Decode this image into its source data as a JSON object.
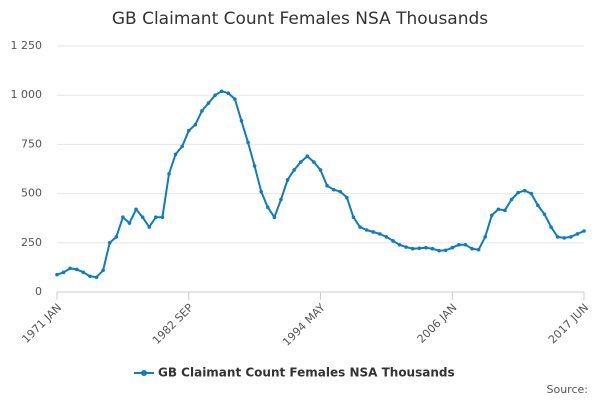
{
  "chart_data": {
    "type": "line",
    "title": "GB Claimant Count Females NSA Thousands",
    "source": "Source:",
    "categories": [
      "1971 JAN",
      null,
      null,
      null,
      null,
      null,
      null,
      null,
      null,
      null,
      null,
      null,
      null,
      null,
      null,
      null,
      null,
      null,
      null,
      null,
      "1982 SEP",
      null,
      null,
      null,
      null,
      null,
      null,
      null,
      null,
      null,
      null,
      null,
      null,
      null,
      null,
      null,
      null,
      null,
      null,
      null,
      "1994 MAY",
      null,
      null,
      null,
      null,
      null,
      null,
      null,
      null,
      null,
      null,
      null,
      null,
      null,
      null,
      null,
      null,
      null,
      null,
      null,
      "2006 JAN",
      null,
      null,
      null,
      null,
      null,
      null,
      null,
      null,
      null,
      null,
      null,
      null,
      null,
      null,
      null,
      null,
      null,
      null,
      null,
      "2017 JUN"
    ],
    "series": [
      {
        "name": "GB Claimant Count Females NSA Thousands",
        "color": "#0e7cc0",
        "values": [
          88,
          100,
          120,
          115,
          100,
          80,
          75,
          110,
          250,
          280,
          380,
          350,
          420,
          380,
          330,
          380,
          380,
          600,
          700,
          740,
          820,
          850,
          920,
          960,
          1000,
          1020,
          1010,
          980,
          870,
          760,
          640,
          510,
          430,
          380,
          470,
          570,
          620,
          660,
          690,
          660,
          620,
          540,
          520,
          510,
          480,
          380,
          330,
          315,
          305,
          295,
          280,
          260,
          240,
          228,
          220,
          222,
          225,
          220,
          210,
          212,
          225,
          240,
          240,
          220,
          215,
          280,
          390,
          420,
          415,
          470,
          505,
          515,
          500,
          440,
          395,
          330,
          280,
          275,
          280,
          295,
          310
        ]
      }
    ],
    "ylim": [
      0,
      1250
    ],
    "yticks": [
      0,
      250,
      500,
      750,
      {
        "value": 1000,
        "label": "1 000"
      },
      {
        "value": 1250,
        "label": "1 250"
      }
    ],
    "grid": true
  }
}
